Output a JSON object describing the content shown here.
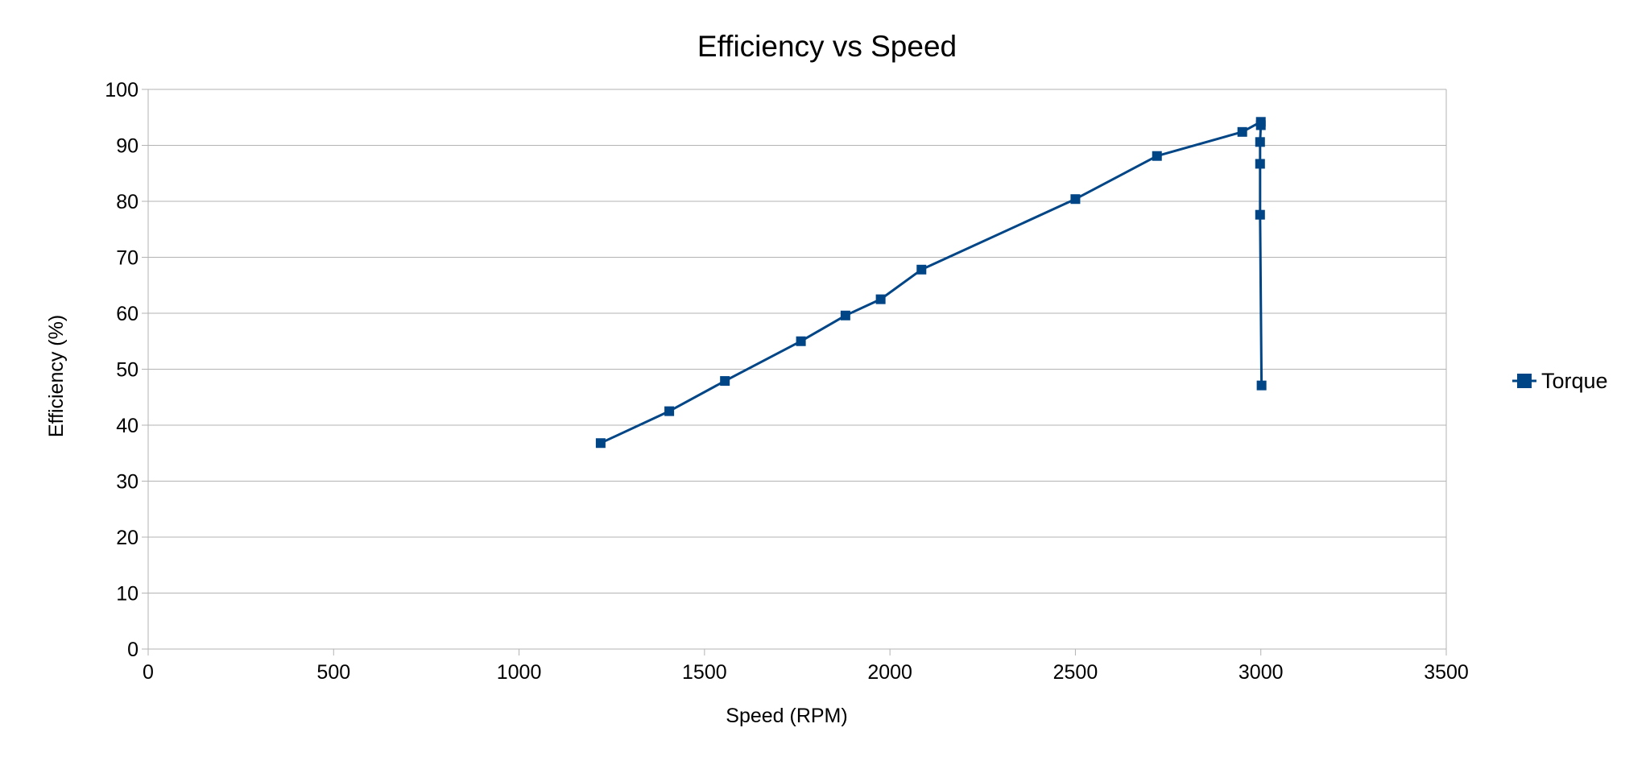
{
  "chart_data": {
    "type": "line",
    "title": "Efficiency vs Speed",
    "xlabel": "Speed (RPM)",
    "ylabel": "Efficiency (%)",
    "xlim": [
      0,
      3500
    ],
    "ylim": [
      0,
      100
    ],
    "x_ticks": [
      0,
      500,
      1000,
      1500,
      2000,
      2500,
      3000,
      3500
    ],
    "y_ticks": [
      0,
      10,
      20,
      30,
      40,
      50,
      60,
      70,
      80,
      90,
      100
    ],
    "grid": "horizontal",
    "legend_position": "right",
    "series": [
      {
        "name": "Torque",
        "color": "#004586",
        "marker": "square",
        "x": [
          1220,
          1405,
          1555,
          1760,
          1880,
          1975,
          2085,
          2500,
          2720,
          2950,
          3000,
          3000,
          2998,
          2998,
          2998,
          3002
        ],
        "y": [
          36.8,
          42.5,
          47.9,
          55.0,
          59.6,
          62.5,
          67.8,
          80.4,
          88.1,
          92.4,
          94.2,
          93.6,
          90.6,
          86.7,
          77.6,
          47.1
        ]
      }
    ]
  }
}
